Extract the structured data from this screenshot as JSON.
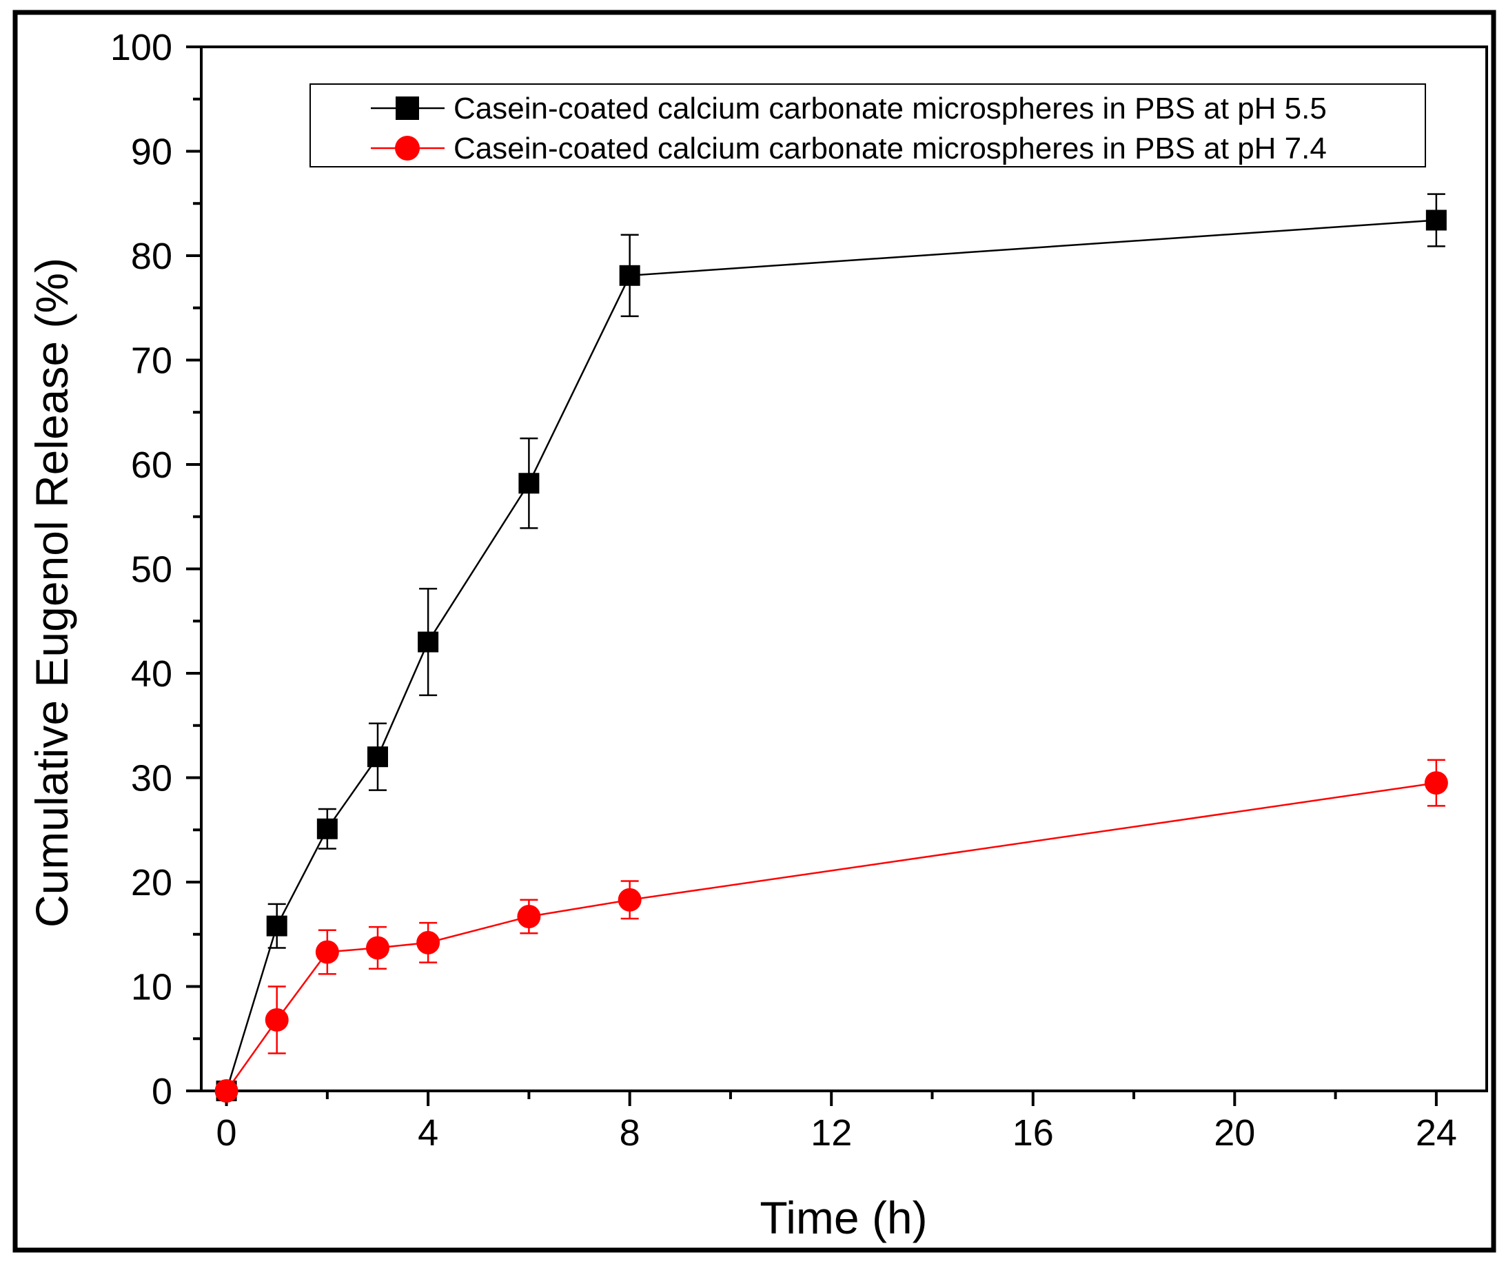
{
  "chart_data": {
    "type": "line",
    "title": "",
    "xlabel": "Time (h)",
    "ylabel": "Cumulative Eugenol Release (%)",
    "xlim": [
      -0.5,
      25
    ],
    "ylim": [
      0,
      100
    ],
    "x_ticks": [
      0,
      4,
      8,
      12,
      16,
      20,
      24
    ],
    "y_ticks": [
      0,
      10,
      20,
      30,
      40,
      50,
      60,
      70,
      80,
      90,
      100
    ],
    "legend_position": "top-right",
    "series": [
      {
        "name": "Casein-coated calcium carbonate microspheres in PBS at pH 5.5",
        "color": "#000000",
        "marker": "square",
        "x": [
          0,
          1,
          2,
          3,
          4,
          6,
          8,
          24
        ],
        "y": [
          0,
          15.8,
          25.1,
          32.0,
          43.0,
          58.2,
          78.1,
          83.4
        ],
        "err": [
          0,
          2.1,
          1.9,
          3.2,
          5.1,
          4.3,
          3.9,
          2.5
        ]
      },
      {
        "name": "Casein-coated calcium carbonate microspheres in PBS at pH 7.4",
        "color": "#ff0000",
        "marker": "circle",
        "x": [
          0,
          1,
          2,
          3,
          4,
          6,
          8,
          24
        ],
        "y": [
          0,
          6.8,
          13.3,
          13.7,
          14.2,
          16.7,
          18.3,
          29.5
        ],
        "err": [
          0,
          3.2,
          2.1,
          2.0,
          1.9,
          1.6,
          1.8,
          2.2
        ]
      }
    ]
  }
}
